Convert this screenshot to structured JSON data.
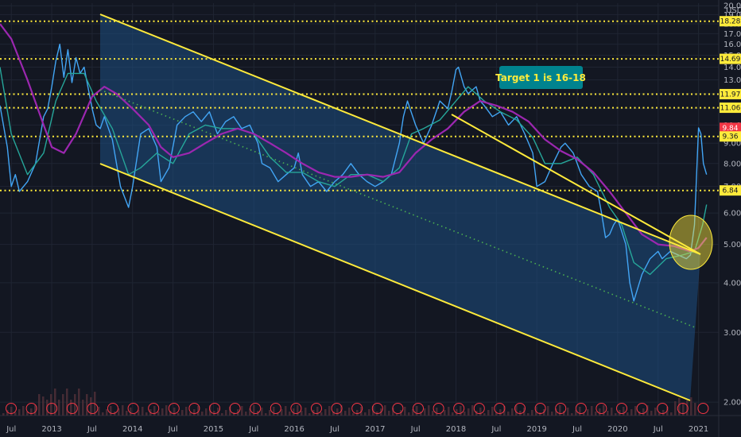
{
  "currency_label": "USD",
  "annotation": {
    "text": "Target 1 is  16-18"
  },
  "chart_data": {
    "type": "line",
    "title": "",
    "xlabel": "",
    "ylabel": "",
    "x_ticks": [
      {
        "label": "Jul",
        "t": 2012.5
      },
      {
        "label": "2013",
        "t": 2013.0
      },
      {
        "label": "Jul",
        "t": 2013.5
      },
      {
        "label": "2014",
        "t": 2014.0
      },
      {
        "label": "Jul",
        "t": 2014.5
      },
      {
        "label": "2015",
        "t": 2015.0
      },
      {
        "label": "Jul",
        "t": 2015.5
      },
      {
        "label": "2016",
        "t": 2016.0
      },
      {
        "label": "Jul",
        "t": 2016.5
      },
      {
        "label": "2017",
        "t": 2017.0
      },
      {
        "label": "Jul",
        "t": 2017.5
      },
      {
        "label": "2018",
        "t": 2018.0
      },
      {
        "label": "Jul",
        "t": 2018.5
      },
      {
        "label": "2019",
        "t": 2019.0
      },
      {
        "label": "Jul",
        "t": 2019.5
      },
      {
        "label": "2020",
        "t": 2020.0
      },
      {
        "label": "Jul",
        "t": 2020.5
      },
      {
        "label": "2021",
        "t": 2021.0
      }
    ],
    "y_ticks": [
      "2.00",
      "3.00",
      "4.00",
      "5.00",
      "6.00",
      "7.00",
      "8.00",
      "9.00",
      "10.00",
      "11.00",
      "12.00",
      "13.00",
      "14.00",
      "15.00",
      "16.00",
      "17.00",
      "18.00",
      "19.00",
      "20.00"
    ],
    "y_scale": "log",
    "ylim": [
      1.85,
      20.3
    ],
    "xlim": [
      2012.36,
      2021.25
    ],
    "horizontal_levels": [
      18.28,
      14.69,
      11.97,
      11.06,
      9.36,
      6.84
    ],
    "price_tags": [
      {
        "label": "18.28",
        "value": 18.28,
        "color": "#ffeb3b"
      },
      {
        "label": "14.69",
        "value": 14.69,
        "color": "#ffeb3b"
      },
      {
        "label": "11.97",
        "value": 11.97,
        "color": "#ffeb3b"
      },
      {
        "label": "11.06",
        "value": 11.06,
        "color": "#ffeb3b"
      },
      {
        "label": "9.84",
        "value": 9.84,
        "color": "#f23645"
      },
      {
        "label": "9.36",
        "value": 9.36,
        "color": "#ffeb3b"
      },
      {
        "label": "6.84",
        "value": 6.84,
        "color": "#ffeb3b"
      }
    ],
    "series": [
      {
        "color": "#42a5f5",
        "points": [
          [
            2012.36,
            11.2
          ],
          [
            2012.45,
            8.8
          ],
          [
            2012.5,
            7.0
          ],
          [
            2012.55,
            7.5
          ],
          [
            2012.6,
            6.8
          ],
          [
            2012.7,
            7.2
          ],
          [
            2012.8,
            8.0
          ],
          [
            2012.9,
            10.5
          ],
          [
            2012.95,
            11.0
          ],
          [
            2013.0,
            12.5
          ],
          [
            2013.05,
            14.5
          ],
          [
            2013.1,
            16.0
          ],
          [
            2013.15,
            13.2
          ],
          [
            2013.2,
            15.5
          ],
          [
            2013.25,
            12.8
          ],
          [
            2013.3,
            14.8
          ],
          [
            2013.35,
            13.5
          ],
          [
            2013.4,
            14.0
          ],
          [
            2013.5,
            11.0
          ],
          [
            2013.55,
            10.0
          ],
          [
            2013.6,
            9.8
          ],
          [
            2013.65,
            10.5
          ],
          [
            2013.75,
            9.2
          ],
          [
            2013.85,
            7.0
          ],
          [
            2013.95,
            6.2
          ],
          [
            2014.0,
            7.0
          ],
          [
            2014.1,
            9.5
          ],
          [
            2014.2,
            9.8
          ],
          [
            2014.3,
            8.8
          ],
          [
            2014.35,
            7.2
          ],
          [
            2014.45,
            7.8
          ],
          [
            2014.55,
            10.0
          ],
          [
            2014.65,
            10.5
          ],
          [
            2014.75,
            10.8
          ],
          [
            2014.85,
            10.2
          ],
          [
            2014.95,
            10.8
          ],
          [
            2015.05,
            9.5
          ],
          [
            2015.15,
            10.2
          ],
          [
            2015.25,
            10.5
          ],
          [
            2015.35,
            9.8
          ],
          [
            2015.45,
            10.0
          ],
          [
            2015.55,
            9.0
          ],
          [
            2015.6,
            8.0
          ],
          [
            2015.7,
            7.8
          ],
          [
            2015.8,
            7.2
          ],
          [
            2015.9,
            7.5
          ],
          [
            2016.0,
            7.8
          ],
          [
            2016.05,
            8.5
          ],
          [
            2016.1,
            7.5
          ],
          [
            2016.2,
            7.0
          ],
          [
            2016.3,
            7.2
          ],
          [
            2016.4,
            6.8
          ],
          [
            2016.5,
            7.2
          ],
          [
            2016.6,
            7.5
          ],
          [
            2016.7,
            8.0
          ],
          [
            2016.8,
            7.5
          ],
          [
            2016.9,
            7.2
          ],
          [
            2017.0,
            7.0
          ],
          [
            2017.1,
            7.2
          ],
          [
            2017.2,
            7.5
          ],
          [
            2017.3,
            9.0
          ],
          [
            2017.35,
            10.5
          ],
          [
            2017.4,
            11.5
          ],
          [
            2017.5,
            10.0
          ],
          [
            2017.6,
            9.0
          ],
          [
            2017.7,
            10.0
          ],
          [
            2017.8,
            11.5
          ],
          [
            2017.9,
            11.0
          ],
          [
            2017.95,
            12.2
          ],
          [
            2018.0,
            13.8
          ],
          [
            2018.03,
            14.0
          ],
          [
            2018.1,
            12.5
          ],
          [
            2018.15,
            12.0
          ],
          [
            2018.25,
            12.5
          ],
          [
            2018.3,
            11.5
          ],
          [
            2018.35,
            11.2
          ],
          [
            2018.45,
            10.5
          ],
          [
            2018.55,
            10.8
          ],
          [
            2018.65,
            10.0
          ],
          [
            2018.75,
            10.5
          ],
          [
            2018.85,
            9.5
          ],
          [
            2018.95,
            8.5
          ],
          [
            2019.0,
            7.0
          ],
          [
            2019.1,
            7.2
          ],
          [
            2019.2,
            8.0
          ],
          [
            2019.3,
            8.8
          ],
          [
            2019.35,
            9.0
          ],
          [
            2019.45,
            8.5
          ],
          [
            2019.5,
            8.0
          ],
          [
            2019.55,
            7.5
          ],
          [
            2019.65,
            7.0
          ],
          [
            2019.75,
            6.8
          ],
          [
            2019.8,
            6.0
          ],
          [
            2019.85,
            5.2
          ],
          [
            2019.9,
            5.3
          ],
          [
            2019.95,
            5.6
          ],
          [
            2020.0,
            5.8
          ],
          [
            2020.1,
            5.0
          ],
          [
            2020.15,
            4.0
          ],
          [
            2020.2,
            3.6
          ],
          [
            2020.3,
            4.2
          ],
          [
            2020.4,
            4.6
          ],
          [
            2020.5,
            4.8
          ],
          [
            2020.55,
            4.6
          ],
          [
            2020.65,
            4.8
          ],
          [
            2020.75,
            4.7
          ],
          [
            2020.85,
            4.6
          ],
          [
            2020.9,
            4.7
          ],
          [
            2020.95,
            5.6
          ],
          [
            2021.0,
            9.84
          ],
          [
            2021.03,
            9.5
          ],
          [
            2021.06,
            8.0
          ],
          [
            2021.1,
            7.5
          ]
        ]
      },
      {
        "color": "#26a69a",
        "points": [
          [
            2012.36,
            14.0
          ],
          [
            2012.5,
            9.5
          ],
          [
            2012.7,
            7.5
          ],
          [
            2012.9,
            8.5
          ],
          [
            2013.05,
            11.5
          ],
          [
            2013.2,
            13.5
          ],
          [
            2013.4,
            13.5
          ],
          [
            2013.55,
            11.5
          ],
          [
            2013.75,
            9.8
          ],
          [
            2013.95,
            7.5
          ],
          [
            2014.1,
            7.8
          ],
          [
            2014.3,
            8.5
          ],
          [
            2014.5,
            8.0
          ],
          [
            2014.7,
            9.5
          ],
          [
            2014.9,
            10.0
          ],
          [
            2015.1,
            9.8
          ],
          [
            2015.3,
            9.8
          ],
          [
            2015.5,
            9.5
          ],
          [
            2015.7,
            8.3
          ],
          [
            2015.9,
            7.6
          ],
          [
            2016.1,
            7.6
          ],
          [
            2016.3,
            7.2
          ],
          [
            2016.5,
            7.0
          ],
          [
            2016.7,
            7.5
          ],
          [
            2016.9,
            7.5
          ],
          [
            2017.1,
            7.2
          ],
          [
            2017.3,
            7.8
          ],
          [
            2017.45,
            9.5
          ],
          [
            2017.6,
            9.8
          ],
          [
            2017.8,
            10.3
          ],
          [
            2018.0,
            11.5
          ],
          [
            2018.15,
            12.5
          ],
          [
            2018.35,
            11.5
          ],
          [
            2018.55,
            10.8
          ],
          [
            2018.75,
            10.3
          ],
          [
            2018.95,
            9.3
          ],
          [
            2019.1,
            8.0
          ],
          [
            2019.3,
            8.0
          ],
          [
            2019.5,
            8.3
          ],
          [
            2019.7,
            7.5
          ],
          [
            2019.9,
            6.2
          ],
          [
            2020.05,
            5.6
          ],
          [
            2020.2,
            4.5
          ],
          [
            2020.4,
            4.2
          ],
          [
            2020.6,
            4.6
          ],
          [
            2020.8,
            4.7
          ],
          [
            2020.95,
            4.8
          ],
          [
            2021.05,
            5.6
          ],
          [
            2021.1,
            6.3
          ]
        ]
      },
      {
        "color": "#9c27b0",
        "points": [
          [
            2012.36,
            18.0
          ],
          [
            2012.5,
            16.5
          ],
          [
            2012.7,
            13.0
          ],
          [
            2012.9,
            10.0
          ],
          [
            2013.0,
            8.8
          ],
          [
            2013.15,
            8.5
          ],
          [
            2013.3,
            9.5
          ],
          [
            2013.5,
            11.8
          ],
          [
            2013.65,
            12.5
          ],
          [
            2013.8,
            12.0
          ],
          [
            2014.0,
            11.0
          ],
          [
            2014.2,
            10.0
          ],
          [
            2014.35,
            8.8
          ],
          [
            2014.5,
            8.3
          ],
          [
            2014.7,
            8.5
          ],
          [
            2014.9,
            9.0
          ],
          [
            2015.1,
            9.5
          ],
          [
            2015.3,
            9.8
          ],
          [
            2015.5,
            9.5
          ],
          [
            2015.7,
            9.0
          ],
          [
            2015.9,
            8.5
          ],
          [
            2016.1,
            8.0
          ],
          [
            2016.3,
            7.6
          ],
          [
            2016.5,
            7.4
          ],
          [
            2016.7,
            7.4
          ],
          [
            2016.9,
            7.5
          ],
          [
            2017.1,
            7.4
          ],
          [
            2017.3,
            7.6
          ],
          [
            2017.5,
            8.5
          ],
          [
            2017.7,
            9.2
          ],
          [
            2017.9,
            9.8
          ],
          [
            2018.1,
            10.8
          ],
          [
            2018.3,
            11.5
          ],
          [
            2018.5,
            11.2
          ],
          [
            2018.7,
            10.8
          ],
          [
            2018.9,
            10.2
          ],
          [
            2019.1,
            9.2
          ],
          [
            2019.3,
            8.6
          ],
          [
            2019.5,
            8.2
          ],
          [
            2019.7,
            7.6
          ],
          [
            2019.9,
            6.8
          ],
          [
            2020.1,
            6.0
          ],
          [
            2020.3,
            5.3
          ],
          [
            2020.5,
            5.0
          ],
          [
            2020.7,
            4.95
          ],
          [
            2020.9,
            4.8
          ],
          [
            2021.0,
            4.9
          ],
          [
            2021.1,
            5.2
          ]
        ]
      }
    ]
  }
}
